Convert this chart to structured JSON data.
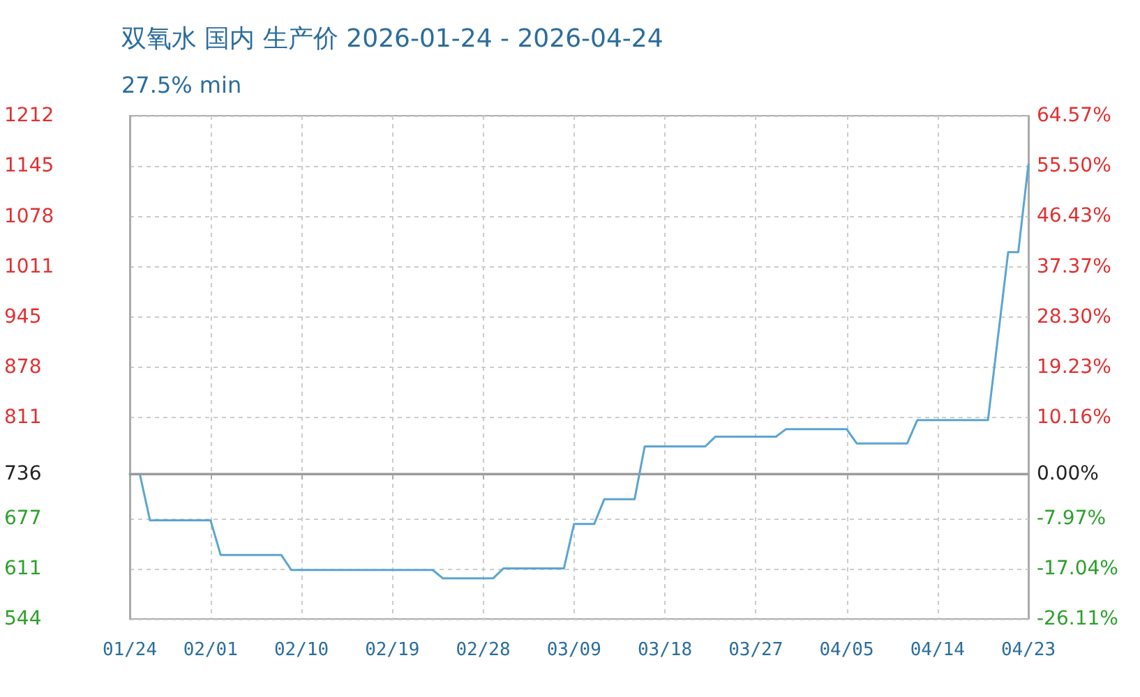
{
  "chart_data": {
    "type": "line",
    "title": "双氧水 国内 生产价 2026-01-24 - 2026-04-24",
    "subtitle": "27.5% min",
    "x": [
      "--01-24",
      "--01-25",
      "--01-26",
      "--02-01",
      "--02-02",
      "--02-08",
      "--02-09",
      "--02-23",
      "--02-24",
      "--03-01",
      "--03-02",
      "--03-08",
      "--03-09",
      "--03-11",
      "--03-12",
      "--03-15",
      "--03-16",
      "--03-22",
      "--03-23",
      "--03-29",
      "--03-30",
      "--04-05",
      "--04-06",
      "--04-11",
      "--04-12",
      "--04-19",
      "--04-21",
      "--04-22",
      "--04-23"
    ],
    "series": [
      {
        "color": "#5aa5d2",
        "values": [
          736,
          736,
          675,
          675,
          629,
          629,
          609,
          609,
          598,
          598,
          611,
          611,
          670,
          670,
          703,
          703,
          773,
          773,
          786,
          786,
          796,
          796,
          777,
          777,
          808,
          808,
          1031,
          1031,
          1147
        ]
      }
    ],
    "xlim": [
      "--01-24",
      "--04-23"
    ],
    "xticks": [
      {
        "value": "--01-24",
        "label": "01/24"
      },
      {
        "value": "--02-01",
        "label": "02/01"
      },
      {
        "value": "--02-10",
        "label": "02/10"
      },
      {
        "value": "--02-19",
        "label": "02/19"
      },
      {
        "value": "--02-28",
        "label": "02/28"
      },
      {
        "value": "--03-09",
        "label": "03/09"
      },
      {
        "value": "--03-18",
        "label": "03/18"
      },
      {
        "value": "--03-27",
        "label": "03/27"
      },
      {
        "value": "--04-05",
        "label": "04/05"
      },
      {
        "value": "--04-14",
        "label": "04/14"
      },
      {
        "value": "--04-23",
        "label": "04/23"
      }
    ],
    "ylim": [
      544,
      1212
    ],
    "yticks": [
      544,
      611,
      677,
      736,
      811,
      878,
      945,
      1011,
      1078,
      1145,
      1212
    ],
    "y2lim": [
      -26.11,
      64.57
    ],
    "y2ticks": [
      {
        "value": -26.11,
        "label": "-26.11%"
      },
      {
        "value": -17.04,
        "label": "-17.04%"
      },
      {
        "value": -7.97,
        "label": "-7.97%"
      },
      {
        "value": 0,
        "label": "0.00%"
      },
      {
        "value": 10.16,
        "label": "10.16%"
      },
      {
        "value": 19.23,
        "label": "19.23%"
      },
      {
        "value": 28.3,
        "label": "28.30%"
      },
      {
        "value": 37.37,
        "label": "37.37%"
      },
      {
        "value": 46.43,
        "label": "46.43%"
      },
      {
        "value": 55.5,
        "label": "55.50%"
      },
      {
        "value": 64.57,
        "label": "64.57%"
      }
    ],
    "ref_lines": [
      {
        "axis": "y",
        "value": 736,
        "color": "#999999"
      }
    ],
    "grid": true,
    "marker": "none",
    "line_style": "solid"
  }
}
